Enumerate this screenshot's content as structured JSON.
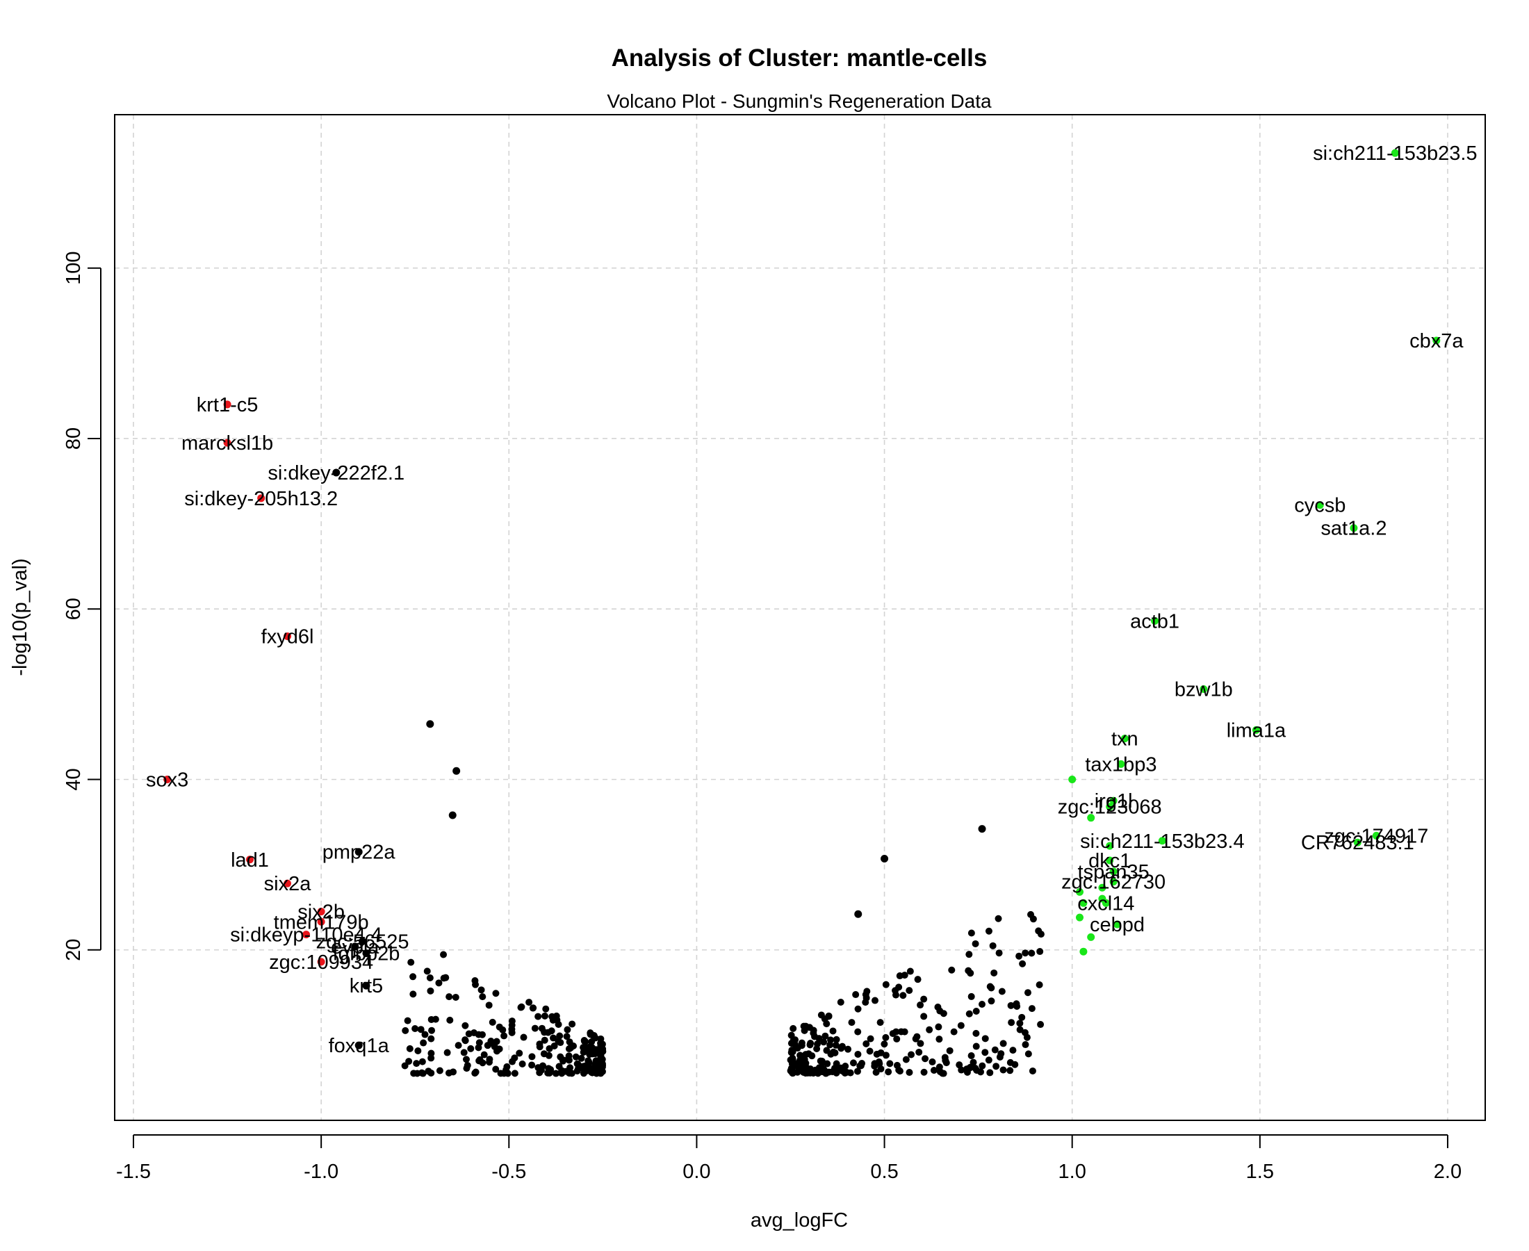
{
  "chart_data": {
    "type": "scatter",
    "title": "Analysis of Cluster: mantle-cells",
    "subtitle": "Volcano Plot - Sungmin's Regeneration Data",
    "xlabel": "avg_logFC",
    "ylabel": "-log10(p_val)",
    "xlim": [
      -1.55,
      2.1
    ],
    "ylim": [
      0,
      118
    ],
    "xticks": [
      -1.5,
      -1.0,
      -0.5,
      0.0,
      0.5,
      1.0,
      1.5,
      2.0
    ],
    "xtick_labels": [
      "-1.5",
      "-1.0",
      "-0.5",
      "0.0",
      "0.5",
      "1.0",
      "1.5",
      "2.0"
    ],
    "yticks": [
      20,
      40,
      60,
      80,
      100
    ],
    "ytick_labels": [
      "20",
      "40",
      "60",
      "80",
      "100"
    ],
    "grid": true,
    "colors": {
      "down": "#e8151b",
      "up": "#19e619",
      "other": "#000000",
      "grid": "#d3d3d3"
    },
    "labeled_points": [
      {
        "label": "krt1-c5",
        "x": -1.25,
        "y": 84.0,
        "group": "down"
      },
      {
        "label": "marcksl1b",
        "x": -1.25,
        "y": 79.5,
        "group": "down"
      },
      {
        "label": "si:dkey-222f2.1",
        "x": -0.96,
        "y": 76.0,
        "group": "other"
      },
      {
        "label": "si:dkey-205h13.2",
        "x": -1.16,
        "y": 73.0,
        "group": "down"
      },
      {
        "label": "fxyd6l",
        "x": -1.09,
        "y": 56.8,
        "group": "down"
      },
      {
        "label": "sox3",
        "x": -1.41,
        "y": 40.0,
        "group": "down"
      },
      {
        "label": "pmp22a",
        "x": -0.9,
        "y": 31.5,
        "group": "other"
      },
      {
        "label": "lad1",
        "x": -1.19,
        "y": 30.6,
        "group": "down"
      },
      {
        "label": "six2a",
        "x": -1.09,
        "y": 27.8,
        "group": "down"
      },
      {
        "label": "six2b",
        "x": -1.0,
        "y": 24.5,
        "group": "down"
      },
      {
        "label": "tmem179b",
        "x": -1.0,
        "y": 23.3,
        "group": "down"
      },
      {
        "label": "si:dkeyp-110e4.4",
        "x": -1.04,
        "y": 21.8,
        "group": "down"
      },
      {
        "label": "zgc:56525",
        "x": -0.89,
        "y": 21.0,
        "group": "other"
      },
      {
        "label": "evpla",
        "x": -0.91,
        "y": 20.4,
        "group": "other"
      },
      {
        "label": "fgfbp2b",
        "x": -0.88,
        "y": 19.6,
        "group": "other"
      },
      {
        "label": "zgc:109934",
        "x": -1.0,
        "y": 18.6,
        "group": "down"
      },
      {
        "label": "krt5",
        "x": -0.88,
        "y": 15.8,
        "group": "other"
      },
      {
        "label": "foxq1a",
        "x": -0.9,
        "y": 8.8,
        "group": "other"
      },
      {
        "label": "si:ch211-153b23.5",
        "x": 1.86,
        "y": 113.5,
        "group": "up"
      },
      {
        "label": "cbx7a",
        "x": 1.97,
        "y": 91.5,
        "group": "up"
      },
      {
        "label": "cycsb",
        "x": 1.66,
        "y": 72.2,
        "group": "up"
      },
      {
        "label": "sat1a.2",
        "x": 1.75,
        "y": 69.5,
        "group": "up"
      },
      {
        "label": "actb1",
        "x": 1.22,
        "y": 58.6,
        "group": "up"
      },
      {
        "label": "bzw1b",
        "x": 1.35,
        "y": 50.6,
        "group": "up"
      },
      {
        "label": "lima1a",
        "x": 1.49,
        "y": 45.8,
        "group": "up"
      },
      {
        "label": "txn",
        "x": 1.14,
        "y": 44.8,
        "group": "up"
      },
      {
        "label": "tax1bp3",
        "x": 1.13,
        "y": 41.8,
        "group": "up"
      },
      {
        "label": "irg1l",
        "x": 1.11,
        "y": 37.5,
        "group": "up"
      },
      {
        "label": "zgc:123068",
        "x": 1.1,
        "y": 36.8,
        "group": "up"
      },
      {
        "label": "si:ch211-153b23.4",
        "x": 1.24,
        "y": 32.8,
        "group": "up"
      },
      {
        "label": "zgc:174917",
        "x": 1.81,
        "y": 33.4,
        "group": "up"
      },
      {
        "label": "CR762483.1",
        "x": 1.76,
        "y": 32.6,
        "group": "up"
      },
      {
        "label": "dkc1",
        "x": 1.1,
        "y": 30.5,
        "group": "up"
      },
      {
        "label": "tspan35",
        "x": 1.11,
        "y": 29.2,
        "group": "up"
      },
      {
        "label": "zgc:162730",
        "x": 1.11,
        "y": 28.0,
        "group": "up"
      },
      {
        "label": "cxcl14",
        "x": 1.09,
        "y": 25.5,
        "group": "up"
      },
      {
        "label": "cebpd",
        "x": 1.12,
        "y": 23.0,
        "group": "up"
      }
    ],
    "unlabeled_points": [
      {
        "x": 1.0,
        "y": 40.0,
        "group": "up"
      },
      {
        "x": 1.05,
        "y": 35.5,
        "group": "up"
      },
      {
        "x": 1.1,
        "y": 32.2,
        "group": "up"
      },
      {
        "x": 1.08,
        "y": 27.3,
        "group": "up"
      },
      {
        "x": 1.02,
        "y": 26.8,
        "group": "up"
      },
      {
        "x": 1.08,
        "y": 26.0,
        "group": "up"
      },
      {
        "x": 1.03,
        "y": 25.5,
        "group": "up"
      },
      {
        "x": 1.02,
        "y": 23.8,
        "group": "up"
      },
      {
        "x": 1.05,
        "y": 21.5,
        "group": "up"
      },
      {
        "x": 1.03,
        "y": 19.8,
        "group": "up"
      },
      {
        "x": -0.71,
        "y": 46.5,
        "group": "other"
      },
      {
        "x": -0.64,
        "y": 41.0,
        "group": "other"
      },
      {
        "x": -0.65,
        "y": 35.8,
        "group": "other"
      },
      {
        "x": 0.76,
        "y": 34.2,
        "group": "other"
      },
      {
        "x": 0.5,
        "y": 30.7,
        "group": "other"
      },
      {
        "x": 0.43,
        "y": 24.2,
        "group": "other"
      }
    ],
    "cloud_clusters": [
      {
        "side": "left",
        "x": [
          -0.78,
          -0.25
        ],
        "y": [
          5.5,
          22
        ],
        "count": 240,
        "group": "other"
      },
      {
        "side": "right",
        "x": [
          0.25,
          0.92
        ],
        "y": [
          5.5,
          26.5
        ],
        "count": 260,
        "group": "other"
      }
    ]
  }
}
